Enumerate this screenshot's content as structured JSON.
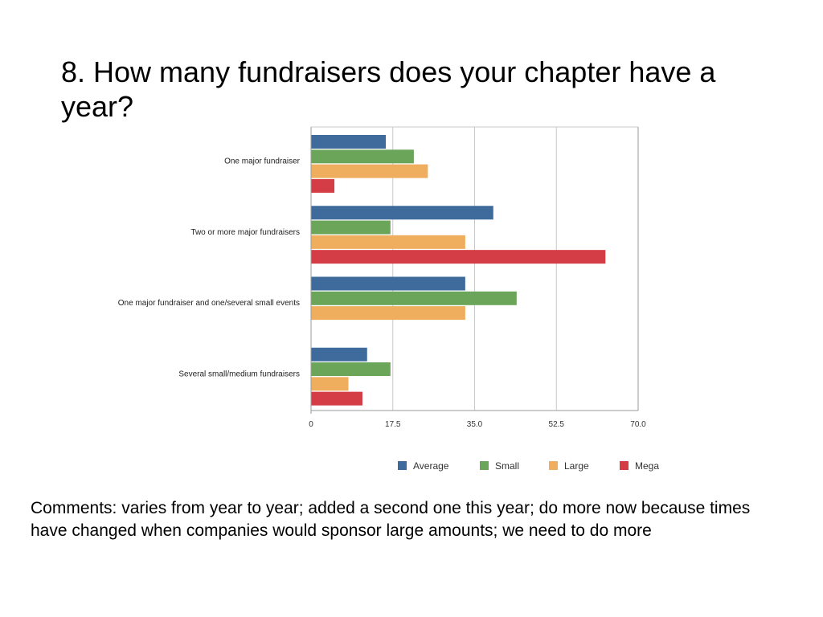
{
  "slide": {
    "title": "8.  How many fundraisers does your chapter have a year?",
    "comments": "Comments:  varies from year to year; added a second one this year; do more now because times have changed when companies would sponsor large amounts;  we need to do more"
  },
  "colors": {
    "Average": "#3e6b9c",
    "Small": "#6aa55a",
    "Large": "#efae5d",
    "Mega": "#d43d45"
  },
  "chart_data": {
    "type": "bar",
    "orientation": "horizontal",
    "categories": [
      "One major fundraiser",
      "Two or more major fundraisers",
      "One major fundraiser and one/several small events",
      "Several small/medium fundraisers"
    ],
    "series": [
      {
        "name": "Average",
        "values": [
          16,
          39,
          33,
          12
        ]
      },
      {
        "name": "Small",
        "values": [
          22,
          17,
          44,
          17
        ]
      },
      {
        "name": "Large",
        "values": [
          25,
          33,
          33,
          8
        ]
      },
      {
        "name": "Mega",
        "values": [
          5,
          63,
          0,
          11
        ]
      }
    ],
    "xlim": [
      0,
      70
    ],
    "xticks": [
      "0",
      "17.5",
      "35.0",
      "52.5",
      "70.0"
    ],
    "grid": true,
    "legend": "bottom"
  }
}
